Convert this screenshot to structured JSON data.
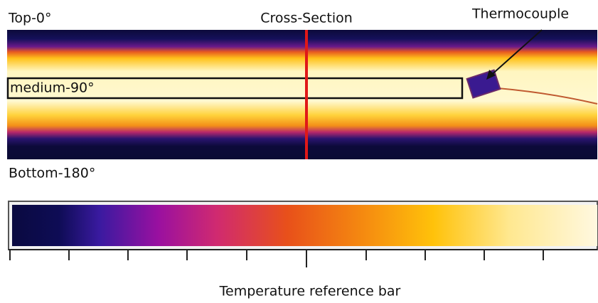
{
  "labels": {
    "top": "Top-0°",
    "cross_section": "Cross-Section",
    "thermocouple": "Thermocouple",
    "medium": "medium-90°",
    "bottom": "Bottom-180°",
    "reference_bar": "Temperature reference bar"
  }
}
